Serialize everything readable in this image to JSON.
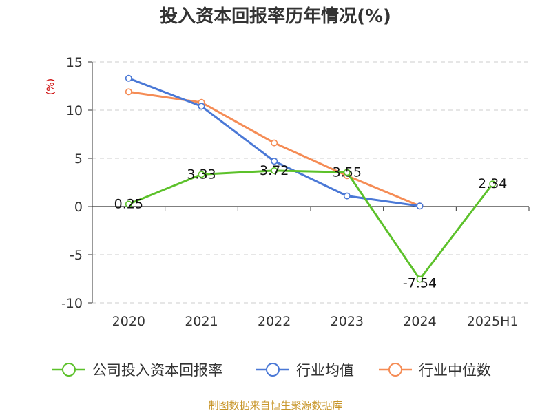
{
  "colors": {
    "company": "#5cc12a",
    "industry_avg": "#4a78d6",
    "industry_median": "#f58c55",
    "axis": "#333333",
    "grid": "#cccccc",
    "unit_label": "#cc0000",
    "source": "#c8962a"
  },
  "chart_data": {
    "type": "line",
    "title": "投入资本回报率历年情况(%)",
    "ylabel": "(%)",
    "xlabel": "",
    "categories": [
      "2020",
      "2021",
      "2022",
      "2023",
      "2024",
      "2025H1"
    ],
    "yticks": [
      "15",
      "10",
      "5",
      "0",
      "-5",
      "-10"
    ],
    "ylim": [
      -10,
      15
    ],
    "grid": "horizontal dashed",
    "legend_position": "bottom",
    "series": [
      {
        "name": "公司投入资本回报率",
        "key": "company",
        "values": [
          0.25,
          3.33,
          3.72,
          3.55,
          -7.54,
          2.34
        ],
        "data_labels": [
          "0.25",
          "3.33",
          "3.72",
          "3.55",
          "-7.54",
          "2.34"
        ]
      },
      {
        "name": "行业均值",
        "key": "industry_avg",
        "values": [
          13.3,
          10.4,
          4.7,
          1.1,
          0.05,
          null
        ]
      },
      {
        "name": "行业中位数",
        "key": "industry_median",
        "values": [
          11.9,
          10.8,
          6.6,
          3.2,
          0.05,
          null
        ]
      }
    ]
  },
  "footer": {
    "source": "制图数据来自恒生聚源数据库"
  }
}
